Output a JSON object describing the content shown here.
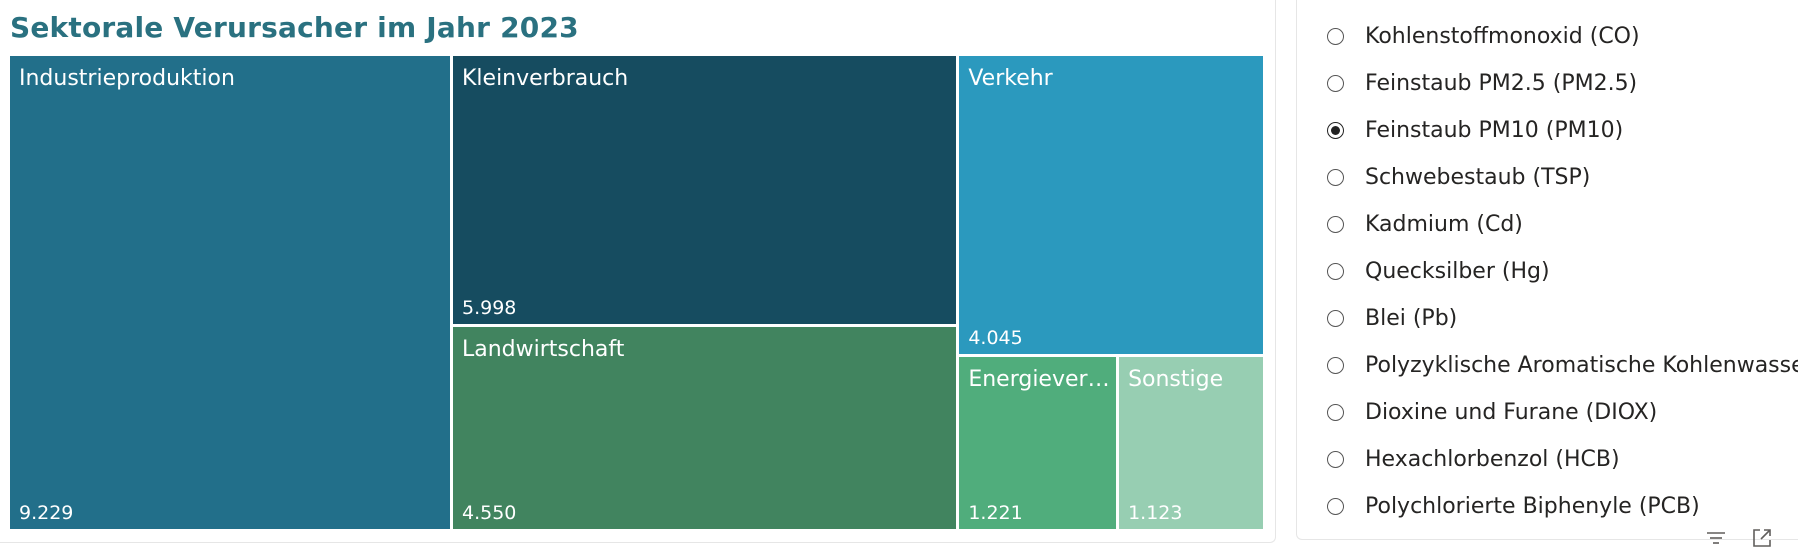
{
  "chart_data": {
    "type": "treemap",
    "title": "Sektorale Verursacher im Jahr 2023",
    "items": [
      {
        "label": "Industrieproduktion",
        "value_label": "9.229",
        "value": 9229,
        "color": "#226f8a"
      },
      {
        "label": "Kleinverbrauch",
        "value_label": "5.998",
        "value": 5998,
        "color": "#164c60"
      },
      {
        "label": "Landwirtschaft",
        "value_label": "4.550",
        "value": 4550,
        "color": "#41845f"
      },
      {
        "label": "Verkehr",
        "value_label": "4.045",
        "value": 4045,
        "color": "#2b99be"
      },
      {
        "label": "Energievers...",
        "value_label": "1.221",
        "value": 1221,
        "color": "#50ad7c"
      },
      {
        "label": "Sonstige",
        "value_label": "1.123",
        "value": 1123,
        "color": "#97ceb2"
      }
    ]
  },
  "slicer": {
    "options": [
      {
        "label": "Kohlenstoffmonoxid (CO)",
        "selected": false
      },
      {
        "label": "Feinstaub PM2.5 (PM2.5)",
        "selected": false
      },
      {
        "label": "Feinstaub PM10 (PM10)",
        "selected": true
      },
      {
        "label": "Schwebestaub (TSP)",
        "selected": false
      },
      {
        "label": "Kadmium (Cd)",
        "selected": false
      },
      {
        "label": "Quecksilber (Hg)",
        "selected": false
      },
      {
        "label": "Blei (Pb)",
        "selected": false
      },
      {
        "label": "Polyzyklische Aromatische Kohlenwasserstoffe",
        "selected": false
      },
      {
        "label": "Dioxine und Furane (DIOX)",
        "selected": false
      },
      {
        "label": "Hexachlorbenzol (HCB)",
        "selected": false
      },
      {
        "label": "Polychlorierte Biphenyle (PCB)",
        "selected": false
      }
    ]
  },
  "icons": {
    "filter": "filter-icon",
    "focus": "focus-mode-icon"
  }
}
